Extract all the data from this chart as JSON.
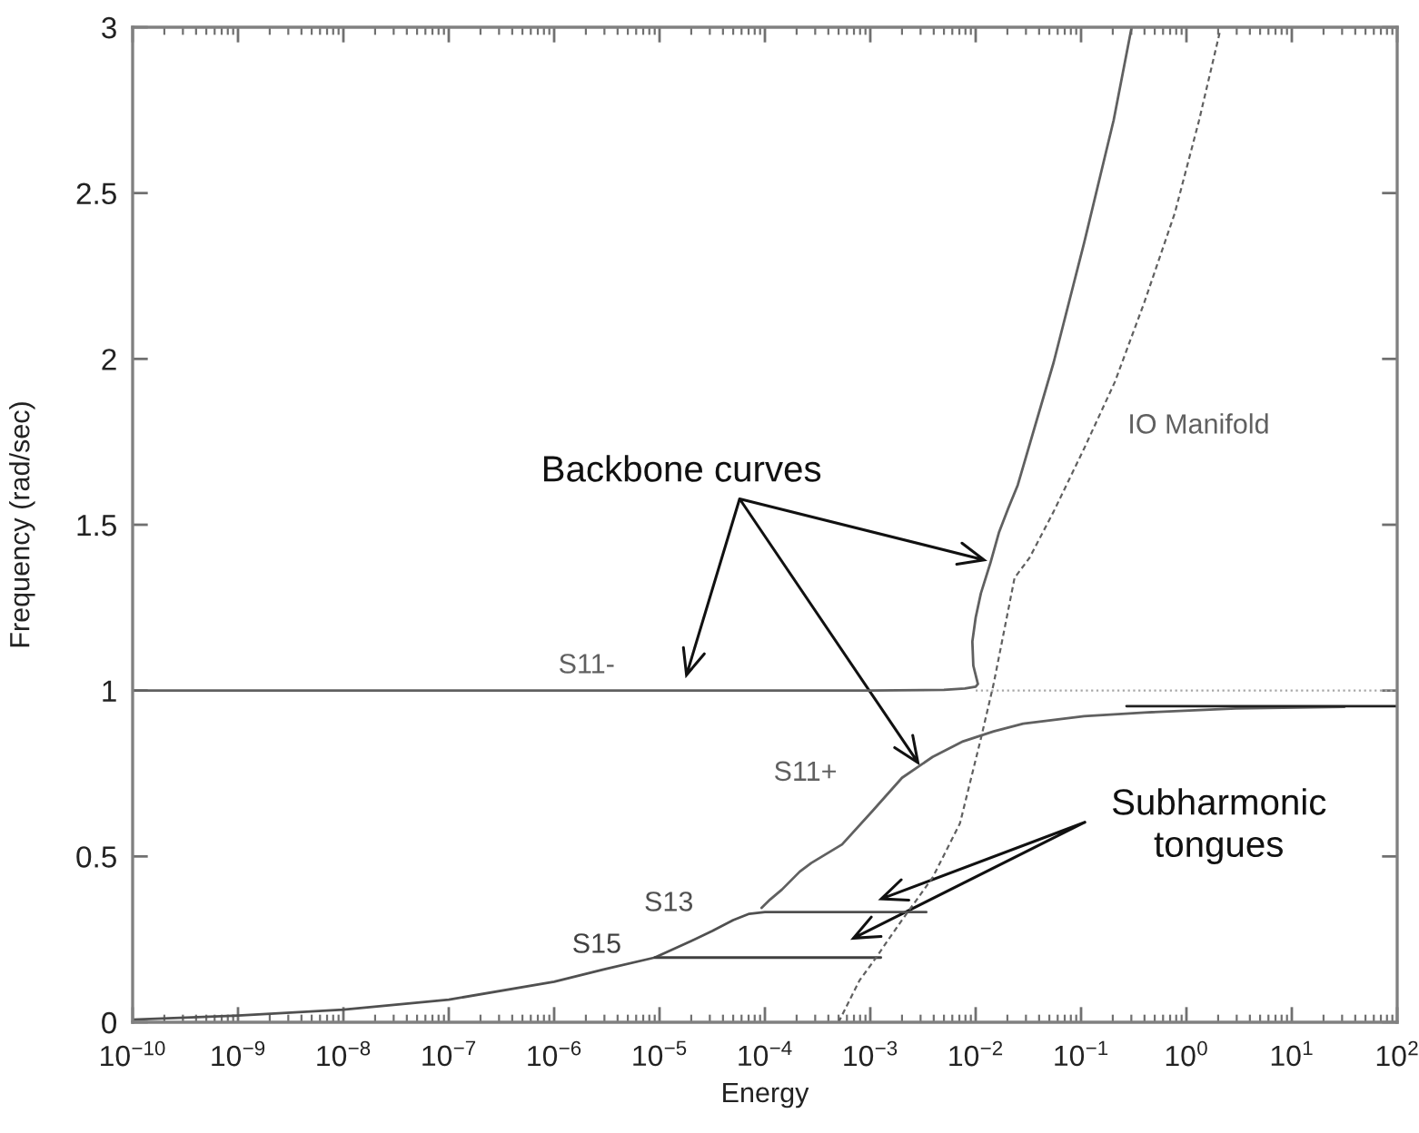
{
  "chart_data": {
    "type": "line",
    "xlabel": "Energy",
    "ylabel": "Frequency (rad/sec)",
    "log": "x",
    "xlim": [
      1e-10,
      100
    ],
    "ylim": [
      0,
      3
    ],
    "xticks": [
      {
        "value": 1e-10,
        "label": "10$^{−10}$"
      },
      {
        "value": 1e-09,
        "label": "10$^{−9}$"
      },
      {
        "value": 1e-08,
        "label": "10$^{−8}$"
      },
      {
        "value": 1e-07,
        "label": "10$^{−7}$"
      },
      {
        "value": 1e-06,
        "label": "10$^{−6}$"
      },
      {
        "value": 1e-05,
        "label": "10$^{−5}$"
      },
      {
        "value": 0.0001,
        "label": "10$^{−4}$"
      },
      {
        "value": 0.001,
        "label": "10$^{−3}$"
      },
      {
        "value": 0.01,
        "label": "10$^{−2}$"
      },
      {
        "value": 0.1,
        "label": "10$^{−1}$"
      },
      {
        "value": 1,
        "label": "10$^{0}$"
      },
      {
        "value": 10,
        "label": "10$^{1}$"
      },
      {
        "value": 100,
        "label": "10$^{2}$"
      }
    ],
    "yticks": [
      0,
      0.5,
      1,
      1.5,
      2,
      2.5,
      3
    ],
    "series": [
      {
        "name": "S11-",
        "color": "#606060",
        "line_style": "solid",
        "x": [
          1e-10,
          0.001,
          0.005,
          0.0079,
          0.01,
          0.0105,
          0.0095,
          0.0093,
          0.01,
          0.0112,
          0.0138,
          0.0166,
          0.0204,
          0.0251,
          0.055,
          0.107,
          0.204,
          0.302
        ],
        "values": [
          1,
          1,
          1.002,
          1.006,
          1.012,
          1.02,
          1.075,
          1.148,
          1.22,
          1.293,
          1.385,
          1.476,
          1.55,
          1.62,
          1.99,
          2.35,
          2.72,
          3
        ]
      },
      {
        "color": "#a8a8a8",
        "line_style": "dotted",
        "x": [
          0.01,
          100
        ],
        "values": [
          1,
          1
        ]
      },
      {
        "name": "S11+",
        "color": "#606060",
        "line_style": "solid",
        "x": [
          9.3e-05,
          0.000112,
          0.000145,
          0.000214,
          0.000275,
          0.00054,
          0.00105,
          0.002,
          0.0039,
          0.0076,
          0.0148,
          0.0282,
          0.107,
          0.398,
          2.95,
          31.6
        ],
        "values": [
          0.345,
          0.37,
          0.4,
          0.454,
          0.48,
          0.536,
          0.637,
          0.737,
          0.8,
          0.847,
          0.877,
          0.9,
          0.923,
          0.934,
          0.946,
          0.951
        ]
      },
      {
        "color": "#202020",
        "line_style": "solid",
        "x": [
          0.27,
          100
        ],
        "values": [
          0.953,
          0.953
        ]
      },
      {
        "name": "S13",
        "color": "#505050",
        "line_style": "solid",
        "x": [
          1e-10,
          1e-09,
          1e-08,
          1e-07,
          1e-06,
          3e-06,
          9e-06,
          2e-05,
          3.16e-05,
          5e-05,
          7.1e-05,
          0.0001,
          0.000316,
          0.001,
          0.0034
        ],
        "values": [
          0.008,
          0.02,
          0.038,
          0.068,
          0.122,
          0.16,
          0.195,
          0.245,
          0.275,
          0.308,
          0.327,
          0.332,
          0.332,
          0.332,
          0.332
        ]
      },
      {
        "name": "S15",
        "color": "#404040",
        "line_style": "solid",
        "x": [
          9e-06,
          0.00126
        ],
        "values": [
          0.195,
          0.195
        ]
      },
      {
        "name": "IO Manifold",
        "color": "#606060",
        "line_style": "dashed",
        "x": [
          0.0005,
          0.00079,
          0.00105,
          0.002,
          0.0039,
          0.0071,
          0.0112,
          0.0148,
          0.0234,
          0.0324,
          0.055,
          0.107,
          0.209,
          0.398,
          0.776,
          1.32,
          2.09
        ],
        "values": [
          0,
          0.126,
          0.18,
          0.308,
          0.436,
          0.6,
          0.855,
          1.02,
          1.34,
          1.4,
          1.54,
          1.73,
          1.93,
          2.17,
          2.44,
          2.72,
          2.99
        ]
      }
    ],
    "annotations": [
      {
        "text": "Backbone curves",
        "x": 0.012,
        "y": 1.394
      },
      "Subharmonic\ntongues"
    ]
  }
}
